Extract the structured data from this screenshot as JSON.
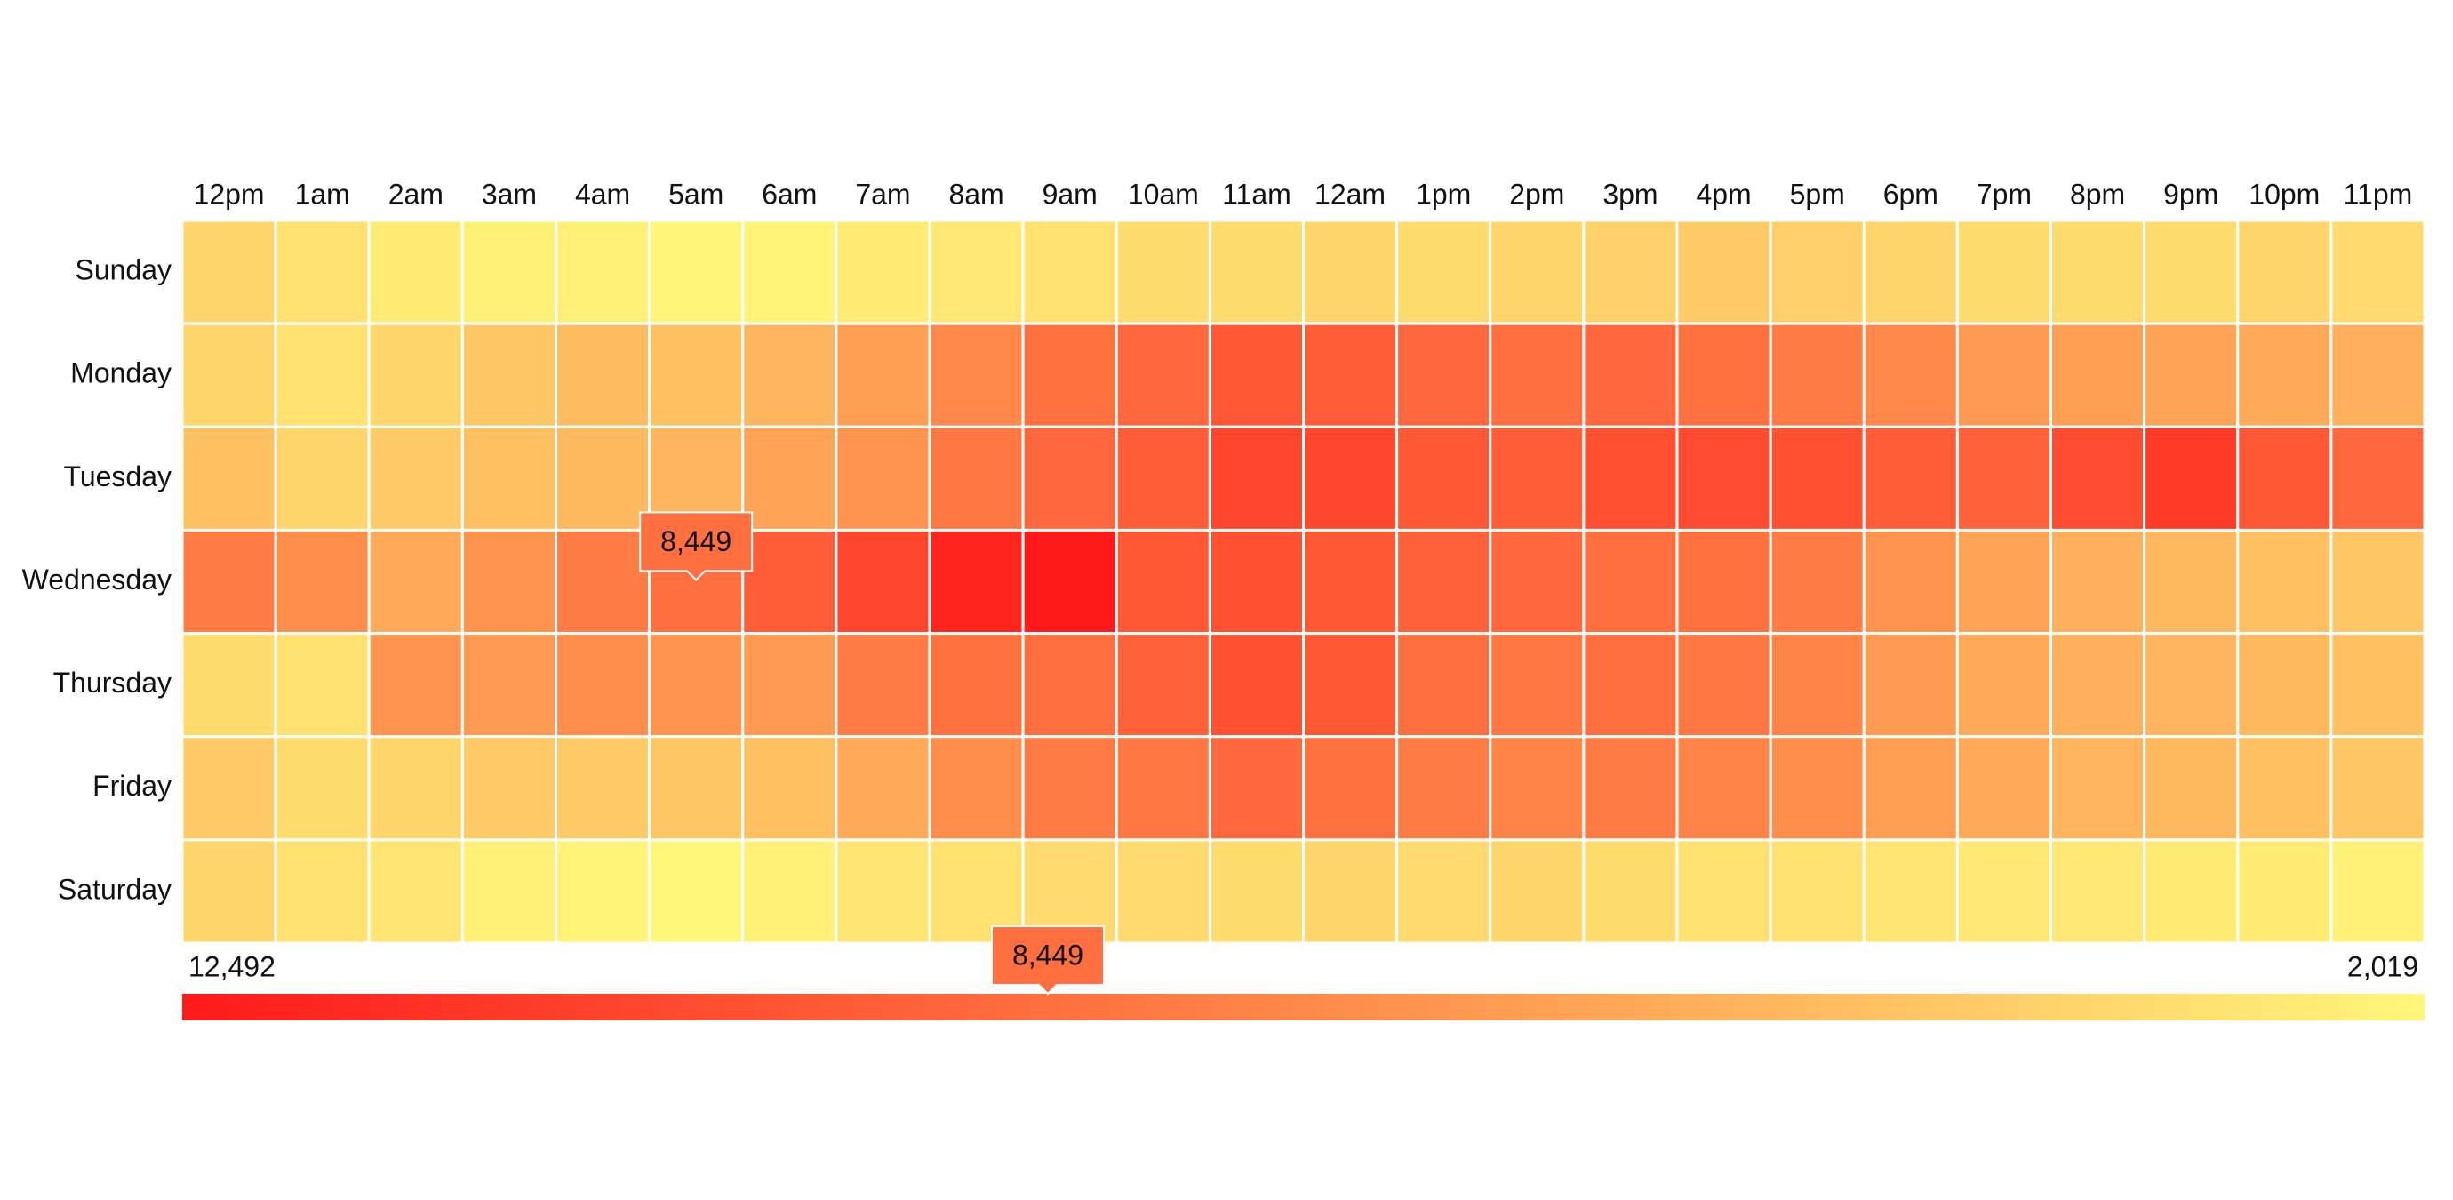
{
  "chart_data": {
    "type": "heatmap",
    "x_categories": [
      "12pm",
      "1am",
      "2am",
      "3am",
      "4am",
      "5am",
      "6am",
      "7am",
      "8am",
      "9am",
      "10am",
      "11am",
      "12am",
      "1pm",
      "2pm",
      "3pm",
      "4pm",
      "5pm",
      "6pm",
      "7pm",
      "8pm",
      "9pm",
      "10pm",
      "11pm"
    ],
    "y_categories": [
      "Sunday",
      "Monday",
      "Tuesday",
      "Wednesday",
      "Thursday",
      "Friday",
      "Saturday"
    ],
    "values": [
      [
        3590,
        3066,
        2543,
        2333,
        2333,
        2124,
        2228,
        2543,
        2752,
        3066,
        3276,
        3276,
        3590,
        3276,
        3590,
        3799,
        4114,
        3904,
        3590,
        3276,
        3276,
        3276,
        3590,
        3380
      ],
      [
        3590,
        3066,
        3590,
        4323,
        4847,
        4637,
        5161,
        6208,
        7256,
        8303,
        8826,
        9560,
        9350,
        8826,
        8512,
        8826,
        8303,
        7779,
        7256,
        6418,
        6208,
        6000,
        5685,
        5371
      ],
      [
        4637,
        3590,
        4114,
        4637,
        4952,
        5161,
        6000,
        6732,
        8093,
        8826,
        9350,
        10397,
        10397,
        9560,
        9350,
        9874,
        10188,
        9874,
        9350,
        9141,
        10188,
        10921,
        9560,
        8826
      ],
      [
        7779,
        7046,
        5685,
        6732,
        7779,
        8449,
        9350,
        10397,
        11968,
        12492,
        9560,
        9874,
        9560,
        9141,
        8826,
        8512,
        8303,
        7779,
        6732,
        6000,
        5371,
        4952,
        4637,
        4323
      ],
      [
        3276,
        3066,
        6732,
        6418,
        7046,
        6732,
        6418,
        7779,
        8303,
        8512,
        9141,
        9874,
        9560,
        8512,
        8093,
        8512,
        8093,
        7465,
        6418,
        5685,
        5371,
        5161,
        4952,
        4637
      ],
      [
        4114,
        3276,
        3590,
        4114,
        4114,
        4323,
        4637,
        5685,
        7046,
        7779,
        8093,
        8826,
        8303,
        7779,
        7465,
        7779,
        7465,
        7046,
        6208,
        5685,
        5161,
        4952,
        4637,
        4323
      ],
      [
        3590,
        3066,
        2857,
        2333,
        2228,
        2019,
        2333,
        2857,
        3066,
        3380,
        3380,
        3276,
        3590,
        3380,
        3590,
        3276,
        3066,
        3066,
        2857,
        2752,
        2752,
        2647,
        2543,
        2333
      ]
    ],
    "color_scale": [
      "#ff1a1a",
      "#fff77a"
    ],
    "legend_range": [
      {
        "value": 12492,
        "label": "12,492"
      },
      {
        "value": 2019,
        "label": "2,019"
      }
    ],
    "tooltip": {
      "value": 8449,
      "label": "8,449"
    }
  }
}
